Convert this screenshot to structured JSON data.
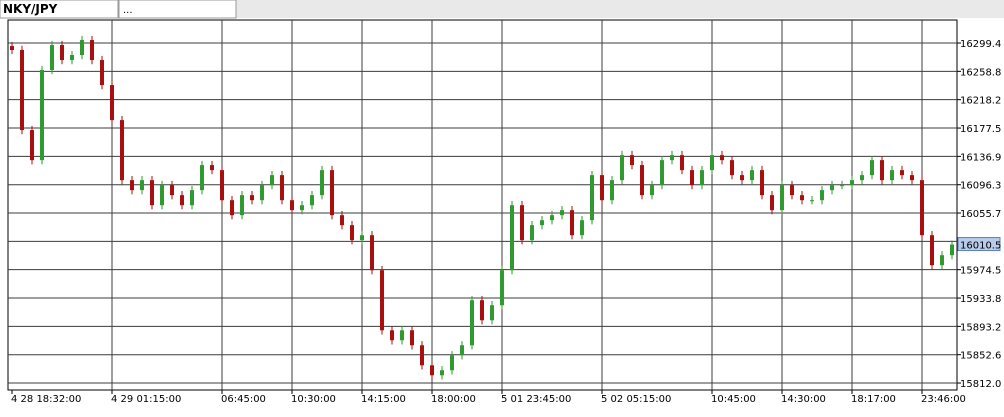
{
  "tabs": [
    "NKY/JPY",
    "..."
  ],
  "chart_data": {
    "type": "candlestick",
    "up_color": "#2f9a2f",
    "down_color": "#a80f0f",
    "grid": true,
    "ylim": [
      15802.0,
      16332.4
    ],
    "yticks": [
      {
        "value": 15812,
        "label": "15812.0"
      },
      15852.6,
      15893.2,
      15933.8,
      15974.5,
      16015.1,
      16055.7,
      16096.3,
      16136.9,
      16177.5,
      16218.2,
      16258.8,
      16299.4
    ],
    "categories": [
      "4 28 18:32:00",
      null,
      null,
      null,
      null,
      null,
      null,
      null,
      null,
      null,
      "4 29 01:15:00",
      null,
      null,
      null,
      null,
      null,
      null,
      null,
      null,
      null,
      null,
      "06:45:00",
      null,
      null,
      null,
      null,
      null,
      null,
      "10:30:00",
      null,
      null,
      null,
      null,
      null,
      null,
      "14:15:00",
      null,
      null,
      null,
      null,
      null,
      null,
      "18:00:00",
      null,
      null,
      null,
      null,
      null,
      null,
      "5 01 23:45:00",
      null,
      null,
      null,
      null,
      null,
      null,
      null,
      null,
      null,
      "5 02 05:15:00",
      null,
      null,
      null,
      null,
      null,
      null,
      null,
      null,
      null,
      null,
      "10:45:00",
      null,
      null,
      null,
      null,
      null,
      null,
      "14:30:00",
      null,
      null,
      null,
      null,
      null,
      null,
      "18:17:00",
      null,
      null,
      null,
      null,
      null,
      null,
      "23:46:00",
      null,
      null,
      null
    ],
    "candles": {
      "open": [
        16295.0,
        16289.4,
        16174.6,
        16131.5,
        16260.7,
        16296.5,
        16275.0,
        16282.2,
        16303.7,
        16275.0,
        16239.1,
        16188.9,
        16102.8,
        16088.5,
        16102.8,
        16066.9,
        16095.7,
        16081.3,
        16066.9,
        16088.5,
        16124.4,
        16117.2,
        16074.1,
        16052.6,
        16081.3,
        16074.1,
        16095.7,
        16110.0,
        16074.1,
        16059.8,
        16066.9,
        16081.3,
        16117.2,
        16052.6,
        16038.3,
        16016.8,
        16023.9,
        15973.7,
        15887.6,
        15873.3,
        15887.6,
        15866.1,
        15837.4,
        15823.1,
        15830.3,
        15851.8,
        15866.1,
        15930.7,
        15902.0,
        15923.5,
        15973.7,
        16066.9,
        16016.8,
        16038.3,
        16045.4,
        16052.6,
        16059.8,
        16023.9,
        16045.4,
        16110.0,
        16074.1,
        16102.8,
        16138.7,
        16124.4,
        16081.3,
        16095.7,
        16131.5,
        16138.7,
        16117.2,
        16095.7,
        16117.2,
        16138.7,
        16131.5,
        16110.0,
        16102.8,
        16117.2,
        16081.3,
        16059.8,
        16095.7,
        16081.3,
        16074.1,
        16074.1,
        16088.5,
        16095.7,
        16095.7,
        16102.8,
        16110.0,
        16131.5,
        16102.8,
        16117.2,
        16110.0,
        16102.8,
        16023.9,
        15980.9,
        15995.2
      ],
      "high": [
        16301.0,
        16295.4,
        16180.6,
        16266.7,
        16302.5,
        16302.5,
        16288.2,
        16309.7,
        16309.7,
        16281.0,
        16245.1,
        16194.9,
        16108.8,
        16108.8,
        16108.8,
        16101.7,
        16101.7,
        16087.3,
        16094.5,
        16130.4,
        16130.4,
        16123.2,
        16080.1,
        16087.3,
        16087.3,
        16101.7,
        16116.0,
        16116.0,
        16080.1,
        16072.9,
        16087.3,
        16123.2,
        16123.2,
        16058.6,
        16044.3,
        16029.9,
        16029.9,
        15979.7,
        15893.6,
        15893.6,
        15893.6,
        15872.1,
        15843.4,
        15836.3,
        15857.8,
        15872.1,
        15936.7,
        15936.7,
        15929.5,
        15979.7,
        16072.9,
        16072.9,
        16044.3,
        16051.4,
        16058.6,
        16065.8,
        16065.8,
        16051.4,
        16116.0,
        16116.0,
        16108.8,
        16144.7,
        16144.7,
        16130.4,
        16101.7,
        16137.5,
        16144.7,
        16144.7,
        16123.2,
        16123.2,
        16144.7,
        16144.7,
        16137.5,
        16116.0,
        16123.2,
        16123.2,
        16087.3,
        16101.7,
        16101.7,
        16087.3,
        16080.1,
        16094.5,
        16101.7,
        16101.7,
        16108.8,
        16116.0,
        16137.5,
        16137.5,
        16123.2,
        16123.2,
        16116.0,
        16108.8,
        16029.9,
        16001.2,
        16016.5
      ],
      "low": [
        16283.4,
        16168.6,
        16125.5,
        16125.5,
        16254.7,
        16269.0,
        16269.0,
        16276.2,
        16269.0,
        16233.1,
        16182.9,
        16096.8,
        16082.5,
        16082.5,
        16060.9,
        16060.9,
        16075.3,
        16060.9,
        16060.9,
        16082.5,
        16111.2,
        16068.1,
        16046.6,
        16046.6,
        16068.1,
        16068.1,
        16089.7,
        16068.1,
        16053.8,
        16053.8,
        16060.9,
        16075.3,
        16046.6,
        16032.3,
        16010.8,
        16010.8,
        15967.7,
        15881.6,
        15867.3,
        15867.3,
        15860.1,
        15831.4,
        15817.1,
        15817.1,
        15824.3,
        15845.8,
        15860.1,
        15896.0,
        15896.0,
        15917.5,
        15967.7,
        16010.8,
        16010.8,
        16032.3,
        16039.4,
        16046.6,
        16017.9,
        16017.9,
        16039.4,
        16068.1,
        16068.1,
        16096.8,
        16118.4,
        16075.3,
        16075.3,
        16089.7,
        16125.5,
        16111.2,
        16089.7,
        16089.7,
        16111.2,
        16125.5,
        16104.0,
        16096.8,
        16096.8,
        16075.3,
        16053.8,
        16053.8,
        16075.3,
        16068.1,
        16068.1,
        16068.1,
        16082.5,
        16089.7,
        16089.7,
        16096.8,
        16104.0,
        16096.8,
        16096.8,
        16104.0,
        16096.8,
        16017.9,
        15974.9,
        15974.9,
        15989.2
      ],
      "close": [
        16289.4,
        16174.6,
        16131.5,
        16260.7,
        16296.5,
        16275.0,
        16282.2,
        16303.7,
        16275.0,
        16239.1,
        16188.9,
        16102.8,
        16088.5,
        16102.8,
        16066.9,
        16095.7,
        16081.3,
        16066.9,
        16088.5,
        16124.4,
        16117.2,
        16074.1,
        16052.6,
        16081.3,
        16074.1,
        16095.7,
        16110.0,
        16074.1,
        16059.8,
        16066.9,
        16081.3,
        16117.2,
        16052.6,
        16038.3,
        16016.8,
        16023.9,
        15973.7,
        15887.6,
        15873.3,
        15887.6,
        15866.1,
        15837.4,
        15823.1,
        15830.3,
        15851.8,
        15866.1,
        15930.7,
        15902.0,
        15923.5,
        15973.7,
        16066.9,
        16016.8,
        16038.3,
        16045.4,
        16052.6,
        16059.8,
        16023.9,
        16045.4,
        16110.0,
        16074.1,
        16102.8,
        16138.7,
        16124.4,
        16081.3,
        16095.7,
        16131.5,
        16138.7,
        16117.2,
        16095.7,
        16117.2,
        16138.7,
        16131.5,
        16110.0,
        16102.8,
        16117.2,
        16081.3,
        16059.8,
        16095.7,
        16081.3,
        16074.1,
        16074.1,
        16088.5,
        16095.7,
        16095.7,
        16102.8,
        16110.0,
        16131.5,
        16102.8,
        16117.2,
        16110.0,
        16102.8,
        16023.9,
        15980.9,
        15995.2,
        16010.5
      ]
    }
  }
}
